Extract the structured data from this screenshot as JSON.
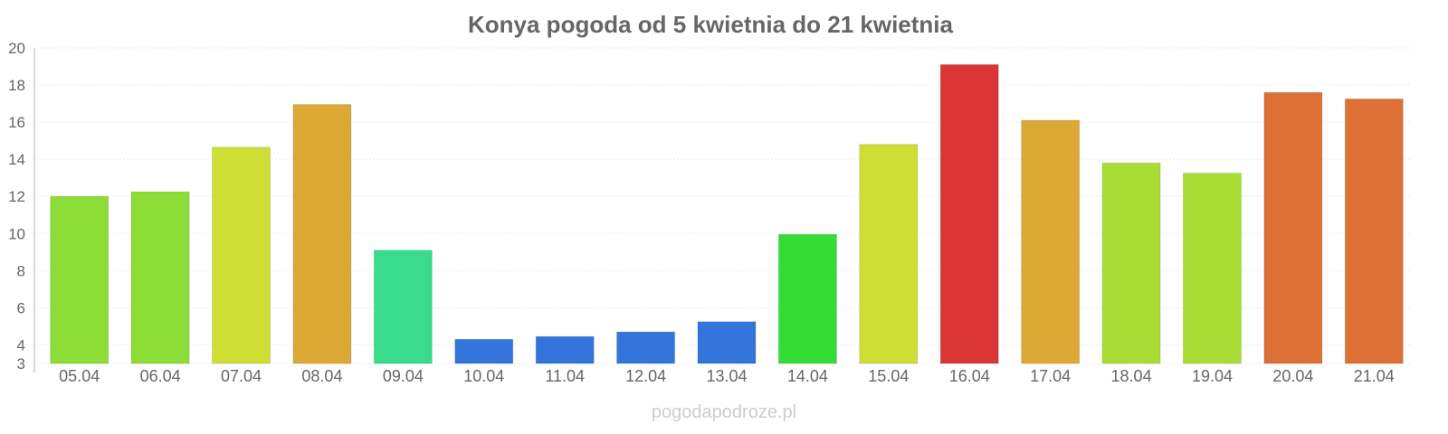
{
  "chart_data": {
    "type": "bar",
    "title": "Konya pogoda od 5 kwietnia do 21 kwietnia",
    "xlabel": "",
    "ylabel": "",
    "ylim": [
      3,
      20
    ],
    "yticks": [
      3,
      4,
      6,
      8,
      10,
      12,
      14,
      16,
      18,
      20
    ],
    "grid": true,
    "categories": [
      "05.04",
      "06.04",
      "07.04",
      "08.04",
      "09.04",
      "10.04",
      "11.04",
      "12.04",
      "13.04",
      "14.04",
      "15.04",
      "16.04",
      "17.04",
      "18.04",
      "19.04",
      "20.04",
      "21.04"
    ],
    "values": [
      12.0,
      12.25,
      14.65,
      16.95,
      9.1,
      4.3,
      4.45,
      4.7,
      5.25,
      9.95,
      14.8,
      19.1,
      16.1,
      13.8,
      13.25,
      17.6,
      17.25
    ],
    "colors": [
      "#8cdd35",
      "#8cdd35",
      "#cfde34",
      "#dda935",
      "#38dc8c",
      "#3475db",
      "#3475db",
      "#3475db",
      "#3475db",
      "#33dd35",
      "#cfde34",
      "#dc3535",
      "#dda935",
      "#a9dd35",
      "#a9dd35",
      "#dd7035",
      "#dd7035"
    ]
  },
  "watermark": "pogodapodroze.pl"
}
